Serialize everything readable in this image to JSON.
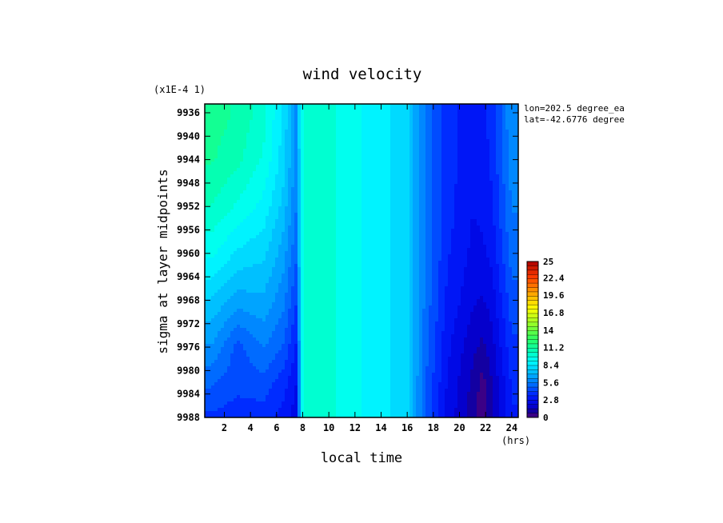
{
  "chart_data": {
    "type": "heatmap",
    "title": "wind velocity",
    "xlabel": "local time",
    "ylabel": "sigma at layer midpoints",
    "x_units": "(hrs)",
    "y_scale_note": "(x1E-4 1)",
    "annotations": [
      "lon=202.5 degree_ea",
      "lat=-42.6776 degree"
    ],
    "x_ticks": [
      "2",
      "4",
      "6",
      "8",
      "10",
      "12",
      "14",
      "16",
      "18",
      "20",
      "22",
      "24"
    ],
    "y_ticks": [
      "9936",
      "9940",
      "9944",
      "9948",
      "9952",
      "9956",
      "9960",
      "9964",
      "9968",
      "9972",
      "9976",
      "9980",
      "9984",
      "9988"
    ],
    "xlim": [
      0.5,
      24.5
    ],
    "ylim": [
      9934.5,
      9988
    ],
    "colorbar": {
      "min": 0,
      "max": 25,
      "labels": [
        "25",
        "22.4",
        "19.6",
        "16.8",
        "14",
        "11.2",
        "8.4",
        "5.6",
        "2.8",
        "0"
      ]
    },
    "x": [
      1,
      3,
      5,
      6.5,
      7.5,
      8,
      9,
      11,
      13,
      14.5,
      16,
      17.5,
      19,
      21,
      21.75,
      22.5,
      24
    ],
    "y": [
      9936,
      9944,
      9952,
      9960,
      9968,
      9976,
      9982,
      9988
    ],
    "z": [
      [
        11.5,
        11.0,
        10.0,
        8.2,
        6.2,
        9.6,
        10.2,
        9.6,
        8.8,
        8.4,
        7.8,
        5.4,
        3.8,
        3.0,
        3.2,
        3.8,
        6.2
      ],
      [
        11.2,
        10.6,
        9.6,
        8.0,
        6.0,
        9.6,
        10.2,
        9.6,
        8.8,
        8.4,
        7.8,
        5.4,
        3.8,
        3.0,
        3.2,
        3.6,
        6.0
      ],
      [
        10.4,
        9.6,
        8.8,
        7.4,
        5.6,
        9.6,
        10.2,
        9.6,
        8.8,
        8.4,
        7.8,
        5.4,
        3.8,
        2.8,
        3.0,
        3.4,
        5.6
      ],
      [
        9.2,
        8.2,
        7.8,
        6.6,
        5.0,
        9.6,
        10.2,
        9.6,
        8.8,
        8.4,
        7.8,
        5.4,
        3.6,
        2.6,
        2.6,
        3.0,
        5.2
      ],
      [
        7.6,
        6.6,
        6.8,
        5.8,
        4.2,
        9.6,
        10.2,
        9.6,
        8.8,
        8.4,
        7.8,
        5.2,
        3.4,
        2.2,
        2.0,
        2.4,
        4.6
      ],
      [
        6.2,
        4.6,
        5.6,
        4.8,
        3.4,
        9.6,
        10.2,
        9.6,
        8.8,
        8.4,
        7.8,
        5.0,
        3.0,
        1.6,
        1.2,
        1.8,
        4.0
      ],
      [
        5.0,
        4.4,
        4.6,
        3.8,
        2.8,
        9.6,
        10.2,
        9.6,
        8.8,
        8.4,
        7.8,
        4.8,
        2.8,
        1.2,
        0.4,
        1.4,
        3.6
      ],
      [
        4.0,
        3.8,
        3.8,
        3.2,
        2.4,
        9.6,
        10.2,
        9.6,
        8.8,
        8.4,
        7.8,
        4.6,
        2.6,
        1.0,
        0.3,
        1.2,
        3.4
      ]
    ],
    "grid": false,
    "legend": "colorbar right"
  }
}
